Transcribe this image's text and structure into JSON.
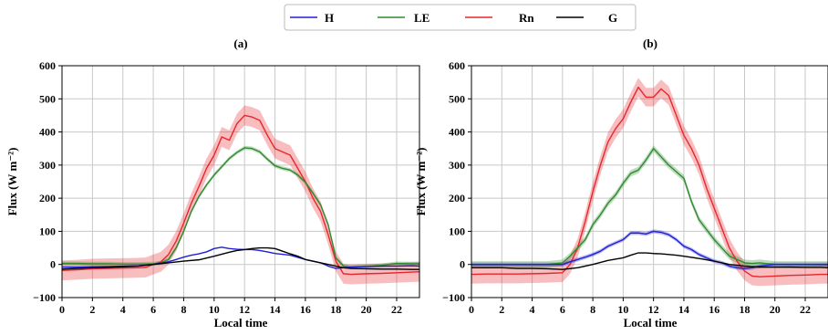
{
  "legend": [
    {
      "name": "H",
      "color": "#1f1fd6"
    },
    {
      "name": "LE",
      "color": "#2e8b2e"
    },
    {
      "name": "Rn",
      "color": "#e8262b"
    },
    {
      "name": "G",
      "color": "#000000"
    }
  ],
  "chart_data": [
    {
      "type": "line",
      "title": "(a)",
      "xlabel": "Local time",
      "ylabel": "Flux (W m⁻²)",
      "xlim": [
        0,
        23.5
      ],
      "ylim": [
        -100,
        600
      ],
      "xticks": [
        0,
        2,
        4,
        6,
        8,
        10,
        12,
        14,
        16,
        18,
        20,
        22
      ],
      "yticks": [
        -100,
        0,
        100,
        200,
        300,
        400,
        500,
        600
      ],
      "grid": true,
      "series": [
        {
          "name": "Rn",
          "color": "#e8262b",
          "x": [
            0,
            1,
            2,
            3,
            4,
            5,
            5.5,
            6,
            6.5,
            7,
            7.5,
            8,
            8.5,
            9,
            9.5,
            10,
            10.5,
            11,
            11.5,
            12,
            12.5,
            13,
            13.5,
            14,
            14.5,
            15,
            15.5,
            16,
            16.5,
            17,
            17.5,
            18,
            18.5,
            19,
            20,
            21,
            22,
            23,
            23.5
          ],
          "y": [
            -18,
            -16,
            -13,
            -12,
            -11,
            -10,
            -9,
            0,
            8,
            30,
            70,
            125,
            185,
            235,
            290,
            330,
            385,
            375,
            425,
            450,
            445,
            435,
            390,
            350,
            340,
            330,
            290,
            250,
            200,
            160,
            90,
            10,
            -28,
            -30,
            -28,
            -27,
            -25,
            -23,
            -22
          ],
          "band": 30
        },
        {
          "name": "LE",
          "color": "#2e8b2e",
          "x": [
            0,
            1,
            2,
            3,
            4,
            5,
            6,
            6.5,
            7,
            7.5,
            8,
            8.5,
            9,
            9.5,
            10,
            10.5,
            11,
            11.5,
            12,
            12.5,
            13,
            13.5,
            14,
            14.5,
            15,
            15.5,
            16,
            16.5,
            17,
            17.5,
            18,
            18.5,
            19,
            20,
            21,
            22,
            23,
            23.5
          ],
          "y": [
            3,
            3,
            2,
            2,
            1,
            1,
            2,
            5,
            15,
            50,
            100,
            160,
            205,
            240,
            270,
            295,
            320,
            338,
            352,
            350,
            340,
            318,
            298,
            290,
            285,
            270,
            248,
            215,
            180,
            120,
            20,
            -5,
            -8,
            -6,
            -3,
            3,
            2,
            2
          ],
          "band": 6
        },
        {
          "name": "H",
          "color": "#1f1fd6",
          "x": [
            0,
            1,
            2,
            3,
            4,
            5,
            6,
            7,
            7.5,
            8,
            8.5,
            9,
            9.5,
            10,
            10.5,
            11,
            11.5,
            12,
            12.5,
            13,
            13.5,
            14,
            15,
            16,
            17,
            17.5,
            18,
            18.5,
            19,
            20,
            21,
            22,
            23,
            23.5
          ],
          "y": [
            -8,
            -8,
            -7,
            -6,
            -5,
            -4,
            0,
            8,
            15,
            22,
            28,
            32,
            38,
            48,
            52,
            48,
            46,
            45,
            45,
            42,
            38,
            33,
            28,
            15,
            5,
            -5,
            -12,
            -10,
            -8,
            -6,
            -5,
            -5,
            -4,
            -5
          ],
          "band": 0
        },
        {
          "name": "G",
          "color": "#000000",
          "x": [
            0,
            1,
            2,
            3,
            4,
            5,
            6,
            7,
            8,
            9,
            10,
            11,
            11.5,
            12,
            12.5,
            13,
            13.5,
            14,
            14.5,
            15,
            15.5,
            16,
            17,
            17.5,
            18,
            18.5,
            19,
            20,
            21,
            22,
            23,
            23.5
          ],
          "y": [
            -14,
            -12,
            -10,
            -9,
            -7,
            -5,
            0,
            5,
            10,
            14,
            25,
            37,
            42,
            45,
            48,
            50,
            50,
            48,
            40,
            32,
            25,
            15,
            5,
            0,
            -5,
            -10,
            -12,
            -13,
            -14,
            -14,
            -15,
            -15
          ],
          "band": 0
        }
      ]
    },
    {
      "type": "line",
      "title": "(b)",
      "xlabel": "Local time",
      "ylabel": "Flux (W m⁻²)",
      "xlim": [
        0,
        23.5
      ],
      "ylim": [
        -100,
        600
      ],
      "xticks": [
        0,
        2,
        4,
        6,
        8,
        10,
        12,
        14,
        16,
        18,
        20,
        22
      ],
      "yticks": [
        -100,
        0,
        100,
        200,
        300,
        400,
        500,
        600
      ],
      "grid": true,
      "series": [
        {
          "name": "Rn",
          "color": "#e8262b",
          "x": [
            0,
            1,
            2,
            3,
            4,
            5,
            6,
            6.5,
            7,
            7.5,
            8,
            8.5,
            9,
            9.5,
            10,
            10.5,
            11,
            11.5,
            12,
            12.5,
            13,
            13.5,
            14,
            14.5,
            15,
            15.5,
            16,
            16.5,
            17,
            17.5,
            18,
            18.5,
            19,
            20,
            21,
            22,
            23,
            23.5
          ],
          "y": [
            -30,
            -29,
            -29,
            -29,
            -28,
            -27,
            -25,
            0,
            50,
            130,
            220,
            300,
            370,
            410,
            440,
            490,
            535,
            505,
            505,
            530,
            510,
            450,
            390,
            350,
            300,
            230,
            170,
            110,
            50,
            10,
            -20,
            -35,
            -37,
            -35,
            -33,
            -32,
            -30,
            -30
          ],
          "band": 28
        },
        {
          "name": "LE",
          "color": "#2e8b2e",
          "x": [
            0,
            1,
            2,
            3,
            4,
            5,
            6,
            6.5,
            7,
            7.5,
            8,
            8.5,
            9,
            9.5,
            10,
            10.5,
            11,
            11.5,
            12,
            12.5,
            13,
            13.5,
            14,
            14.5,
            15,
            15.5,
            16,
            16.5,
            17,
            17.5,
            18,
            18.5,
            19,
            20,
            21,
            22,
            23,
            23.5
          ],
          "y": [
            0,
            0,
            0,
            0,
            0,
            0,
            5,
            25,
            50,
            75,
            120,
            150,
            185,
            210,
            245,
            275,
            285,
            315,
            350,
            325,
            300,
            280,
            260,
            190,
            135,
            105,
            75,
            50,
            25,
            15,
            5,
            3,
            5,
            0,
            0,
            0,
            0,
            0
          ],
          "band": 10
        },
        {
          "name": "H",
          "color": "#1f1fd6",
          "x": [
            0,
            1,
            2,
            3,
            4,
            5,
            6,
            6.5,
            7,
            7.5,
            8,
            8.5,
            9,
            9.5,
            10,
            10.5,
            11,
            11.5,
            12,
            12.5,
            13,
            13.5,
            14,
            14.5,
            15,
            15.5,
            16,
            16.5,
            17,
            17.5,
            18,
            18.5,
            19,
            20,
            21,
            22,
            23,
            23.5
          ],
          "y": [
            0,
            0,
            0,
            0,
            0,
            0,
            0,
            8,
            15,
            22,
            30,
            40,
            55,
            65,
            75,
            95,
            95,
            92,
            100,
            97,
            90,
            75,
            55,
            45,
            30,
            20,
            10,
            5,
            -5,
            -10,
            -12,
            -10,
            -5,
            0,
            0,
            0,
            0,
            0
          ],
          "band": 6
        },
        {
          "name": "G",
          "color": "#000000",
          "x": [
            0,
            1,
            2,
            3,
            4,
            5,
            6,
            7,
            8,
            9,
            10,
            10.5,
            11,
            11.5,
            12,
            12.5,
            13,
            13.5,
            14,
            15,
            16,
            17,
            18,
            19,
            20,
            21,
            22,
            23,
            23.5
          ],
          "y": [
            -10,
            -10,
            -10,
            -12,
            -12,
            -13,
            -15,
            -10,
            0,
            12,
            20,
            28,
            35,
            35,
            33,
            32,
            30,
            28,
            25,
            18,
            10,
            0,
            -5,
            -8,
            -8,
            -8,
            -9,
            -9,
            -10
          ],
          "band": 0
        }
      ]
    }
  ]
}
